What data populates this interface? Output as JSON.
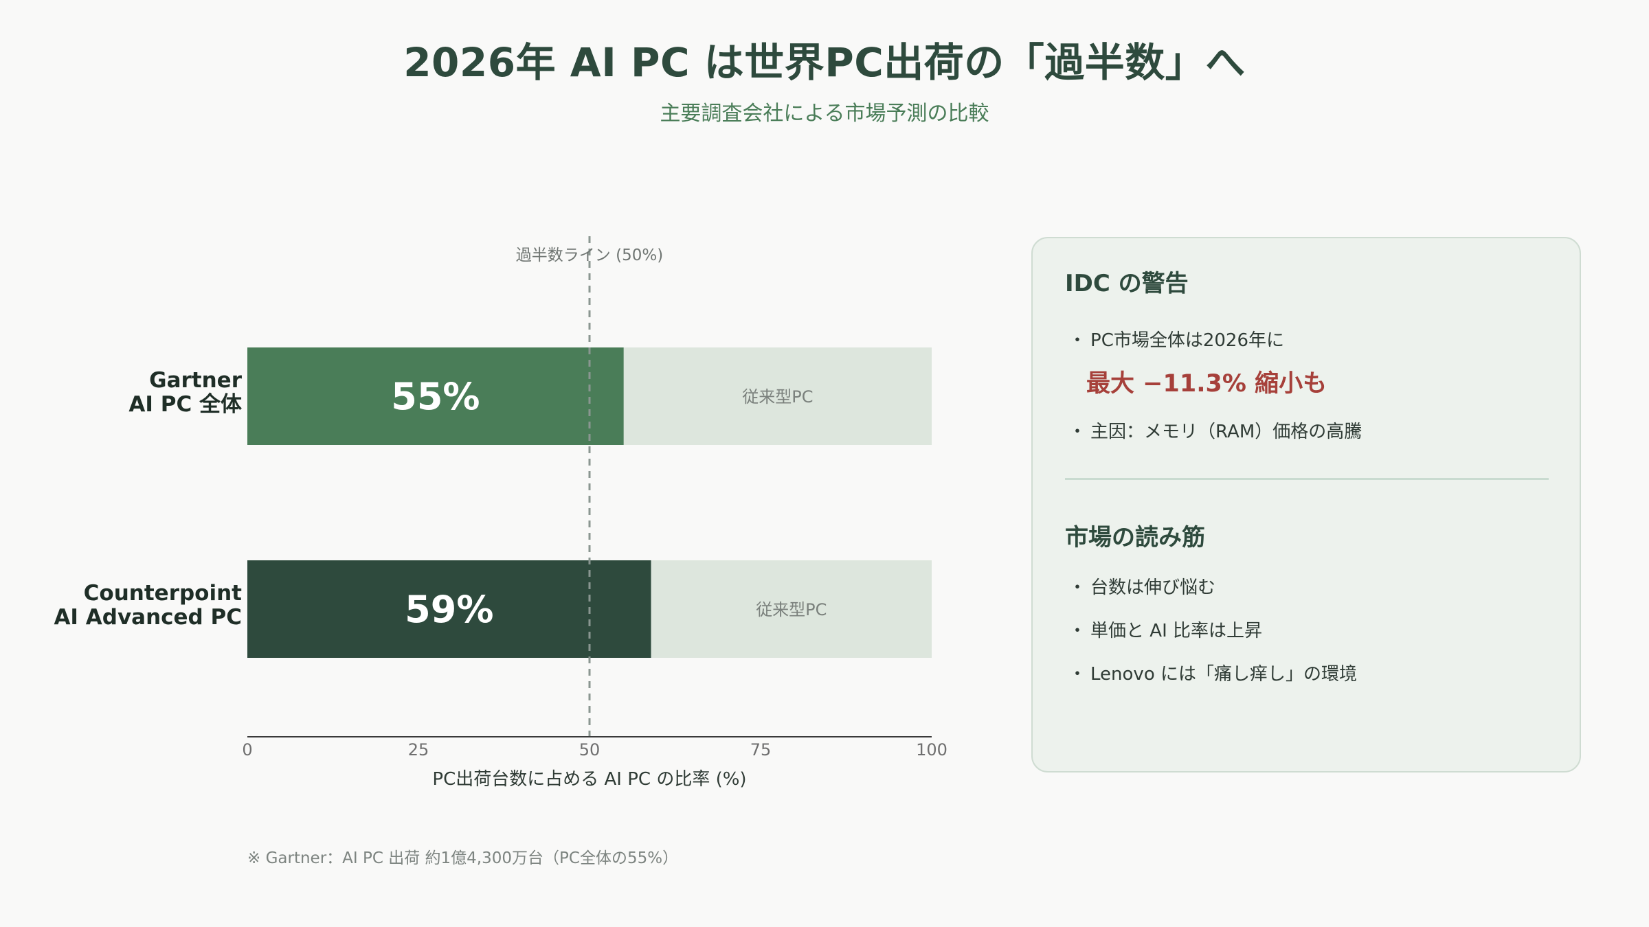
{
  "header": {
    "title": "2026年 AI PC は世界PC出荷の「過半数」へ",
    "subtitle": "主要調査会社による市場予測の比較"
  },
  "chart_data": {
    "type": "bar",
    "orientation": "horizontal",
    "stacked": true,
    "categories": [
      [
        "Gartner",
        "AI PC 全体"
      ],
      [
        "Counterpoint",
        "AI Advanced PC"
      ]
    ],
    "values": [
      55,
      59
    ],
    "value_labels": [
      "55%",
      "59%"
    ],
    "remainder_label": "従来型PC",
    "xlabel": "PC出荷台数に占める AI PC の比率 (%)",
    "xlim": [
      0,
      100
    ],
    "xticks": [
      0,
      25,
      50,
      75,
      100
    ],
    "reference_line": {
      "value": 50,
      "label": "過半数ライン (50%)"
    },
    "grid": false,
    "legend": "none",
    "colors": {
      "bars": [
        "#4a7d58",
        "#2e4a3d"
      ],
      "remainder": "#dde6dd",
      "reference_line": "#8a9691",
      "axis": "#3a3a3a",
      "tick_text": "#6f6f6f"
    }
  },
  "footnote": "※ Gartner：AI PC 出荷 約1億4,300万台（PC全体の55%）",
  "panel": {
    "section1": {
      "heading": "IDC の警告",
      "item1": "PC市場全体は2026年に",
      "highlight": "最大 −11.3% 縮小も",
      "item2": "主因：メモリ（RAM）価格の高騰"
    },
    "section2": {
      "heading": "市場の読み筋",
      "items": [
        "台数は伸び悩む",
        "単価と AI 比率は上昇",
        "Lenovo には「痛し痒し」の環境"
      ]
    },
    "bullet": "・",
    "colors": {
      "highlight": "#a6403a",
      "background": "#edf2ed"
    }
  }
}
